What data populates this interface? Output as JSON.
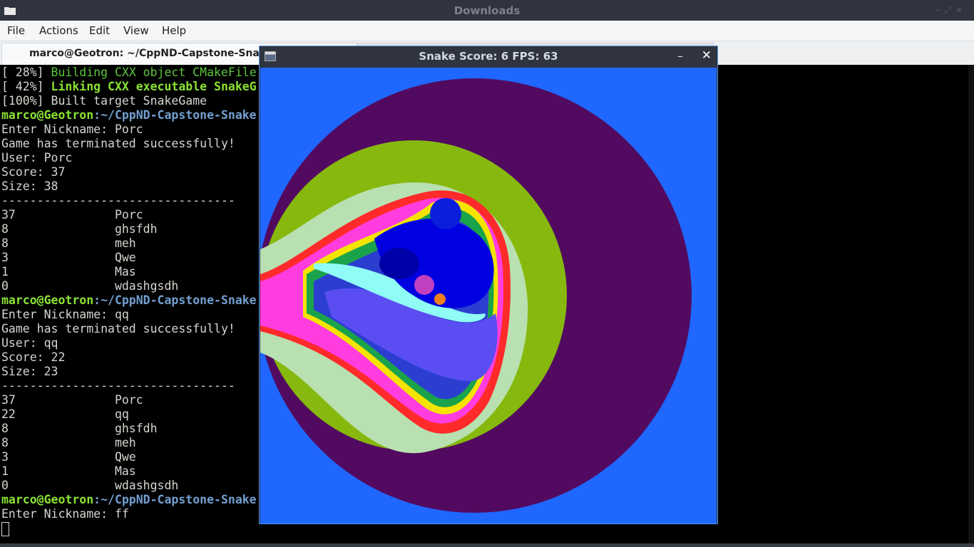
{
  "window": {
    "title": "Downloads"
  },
  "menu": [
    "File",
    "Actions",
    "Edit",
    "View",
    "Help"
  ],
  "tabs": [
    {
      "label": "marco@Geotron: ~/CppND-Capstone-Snake-G"
    }
  ],
  "terminal": {
    "build": [
      {
        "pct": "[ 28%] ",
        "text": "Building CXX object CMakeFile",
        "style": "g"
      },
      {
        "pct": "[ 42%] ",
        "text": "Linking CXX executable SnakeG",
        "style": "gb"
      },
      {
        "pct": "[100%] ",
        "text": "Built target SnakeGame",
        "style": ""
      }
    ],
    "prompt_user": "marco@Geotron",
    "prompt_path": ":~/CppND-Capstone-Snake",
    "session1": [
      "Enter Nickname: Porc",
      "Game has terminated successfully!",
      "User: Porc",
      "Score: 37",
      "Size: 38",
      "---------------------------------"
    ],
    "table1": [
      "37              Porc",
      "8               ghsfdh",
      "8               meh",
      "3               Qwe",
      "1               Mas",
      "0               wdashgsdh"
    ],
    "session2": [
      "Enter Nickname: qq",
      "Game has terminated successfully!",
      "User: qq",
      "Score: 22",
      "Size: 23",
      "---------------------------------"
    ],
    "table2": [
      "37              Porc",
      "22              qq",
      "8               ghsfdh",
      "8               meh",
      "3               Qwe",
      "1               Mas",
      "0               wdashgsdh"
    ],
    "session3": [
      "Enter Nickname: ff"
    ]
  },
  "snake_window": {
    "title": "Snake Score: 6 FPS: 63",
    "minimize_glyph": "–",
    "close_glyph": "✕"
  }
}
